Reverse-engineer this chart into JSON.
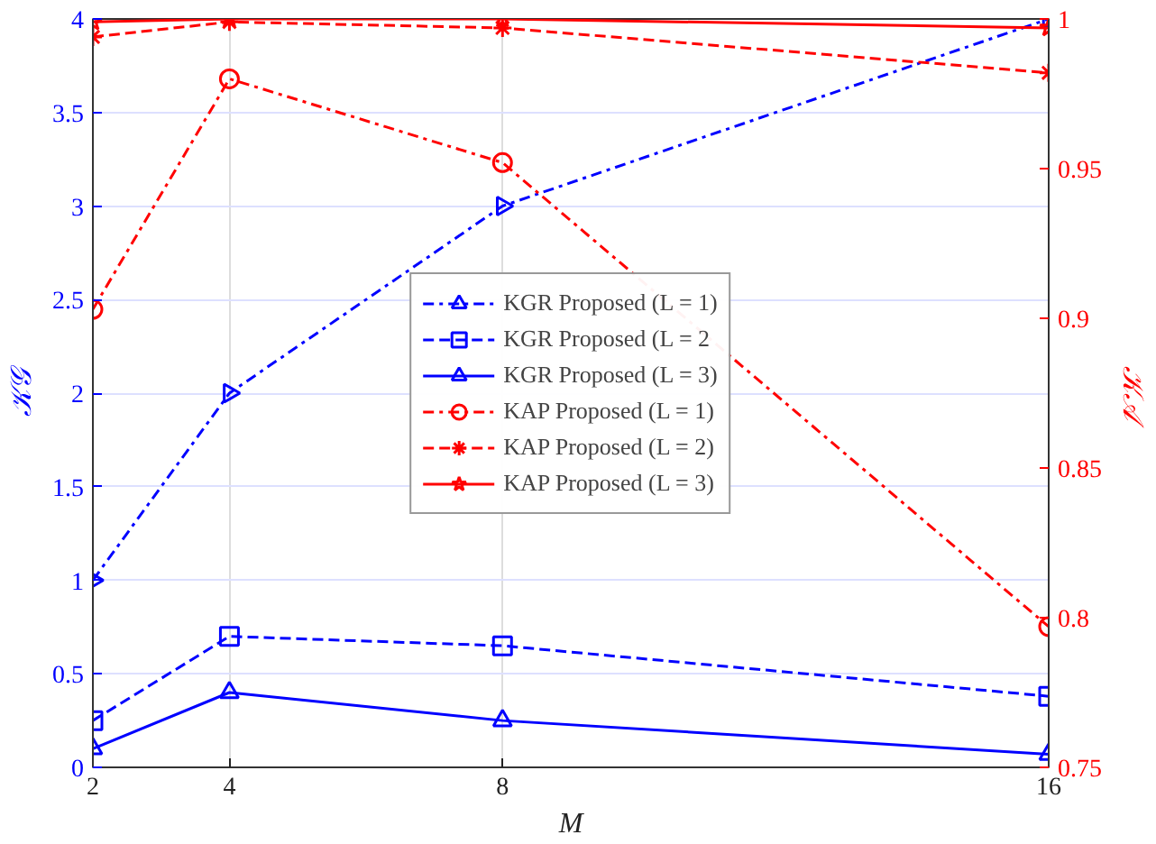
{
  "chart_data": {
    "type": "line",
    "xlabel": "M",
    "ylabel": "𝒦𝒢",
    "y2label": "𝒦𝒜",
    "x": [
      2,
      4,
      8,
      16
    ],
    "xlim": [
      2,
      16
    ],
    "xticks": [
      2,
      4,
      8,
      16
    ],
    "ylim": [
      0,
      4
    ],
    "yticks": [
      0,
      0.5,
      1,
      1.5,
      2,
      2.5,
      3,
      3.5,
      4
    ],
    "y2lim": [
      0.75,
      1
    ],
    "y2ticks": [
      0.75,
      0.8,
      0.85,
      0.9,
      0.95,
      1
    ],
    "grid": true,
    "legend": "center",
    "series": [
      {
        "name": "KGR Proposed (L = 1)",
        "color": "#0000ff",
        "values": [
          1,
          2,
          3,
          4
        ],
        "marker": "triangle",
        "line_style": "dashdot"
      },
      {
        "name": "KGR Proposed (L = 2",
        "color": "#0000ff",
        "values": [
          0.25,
          0.7,
          0.65,
          0.38
        ],
        "marker": "square",
        "line_style": "dashed"
      },
      {
        "name": "KGR Proposed (L = 3)",
        "color": "#0000ff",
        "values": [
          0.1,
          0.4,
          0.25,
          0.07
        ],
        "marker": "triangle",
        "line_style": "solid"
      },
      {
        "name": "KAP Proposed (L = 1)",
        "color": "#ff0000",
        "values": [
          0.903,
          0.98,
          0.952,
          0.797
        ],
        "marker": "circle",
        "line_style": "dashdot",
        "axis": "y2"
      },
      {
        "name": "KAP Proposed (L = 2)",
        "color": "#ff0000",
        "values": [
          0.994,
          0.999,
          0.997,
          0.982
        ],
        "marker": "cross",
        "line_style": "dashed",
        "axis": "y2"
      },
      {
        "name": "KAP Proposed (L = 3)",
        "color": "#ff0000",
        "values": [
          0.999,
          1,
          1,
          0.997
        ],
        "marker": "star",
        "line_style": "solid",
        "axis": "y2"
      }
    ]
  }
}
